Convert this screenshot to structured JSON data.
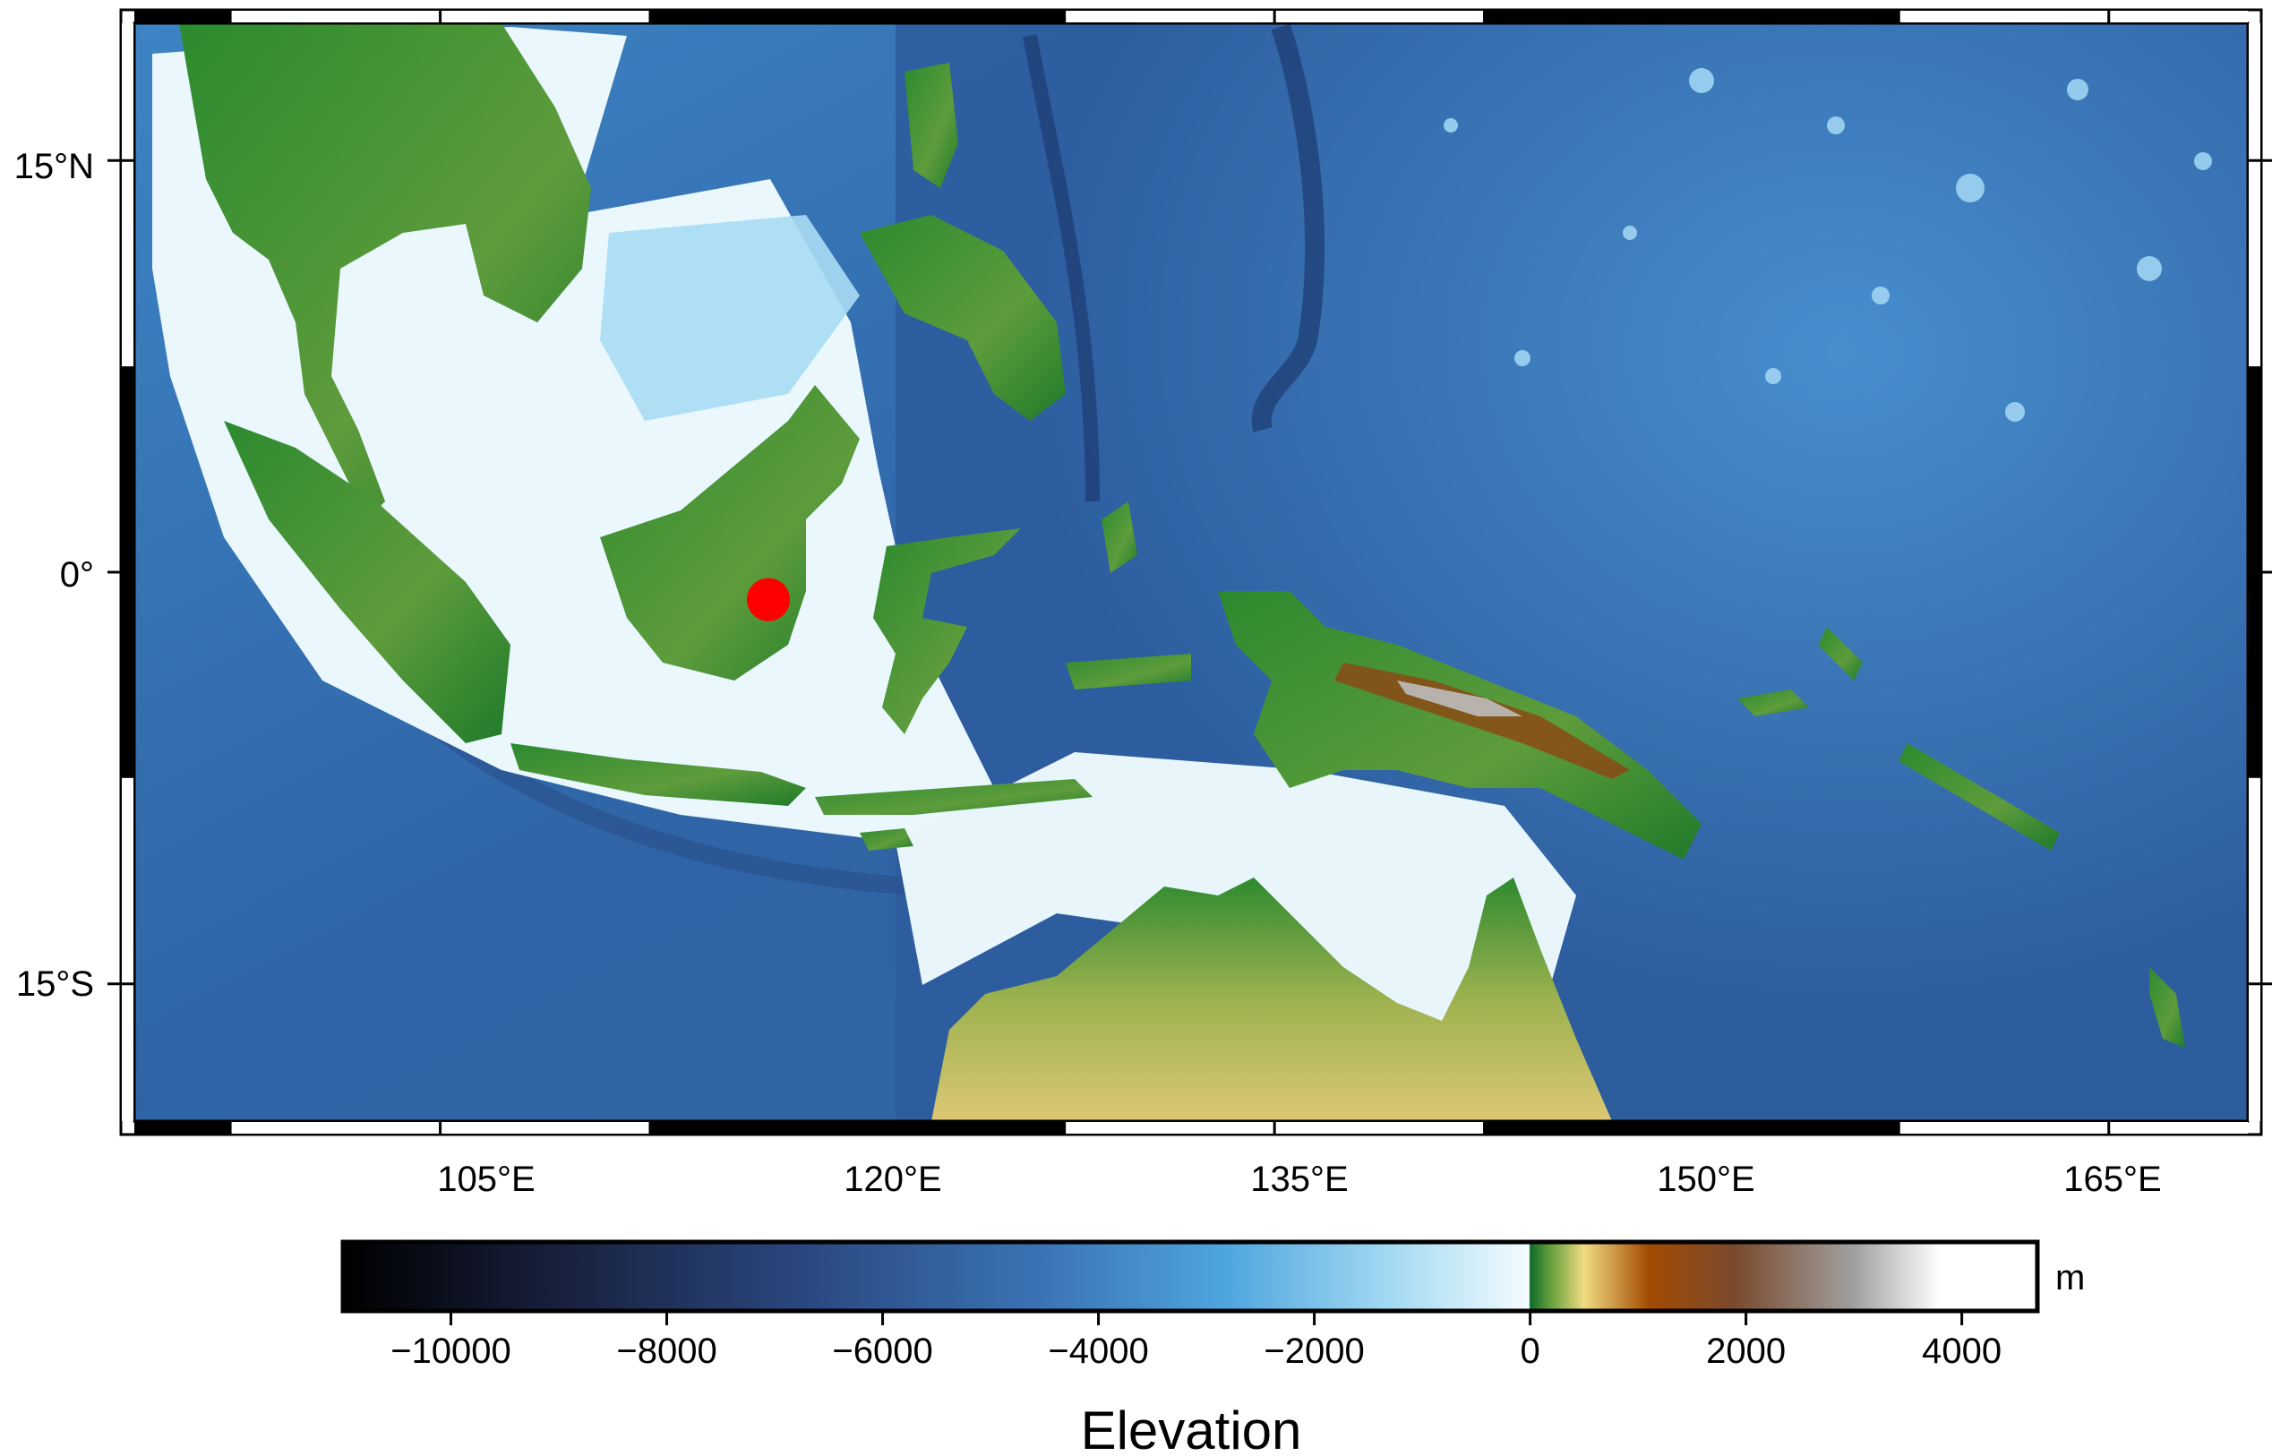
{
  "map": {
    "region": {
      "lon_min": 94,
      "lon_max": 170,
      "lat_min": -20,
      "lat_max": 20
    },
    "projection": "cylindrical",
    "frame_style": "fancy (alternating black/white)",
    "lat_ticks": [
      {
        "value": 15,
        "label": "15°N"
      },
      {
        "value": 0,
        "label": "0°"
      },
      {
        "value": -15,
        "label": "15°S"
      }
    ],
    "lon_ticks": [
      {
        "value": 105,
        "label": "105°E"
      },
      {
        "value": 120,
        "label": "120°E"
      },
      {
        "value": 135,
        "label": "135°E"
      },
      {
        "value": 150,
        "label": "150°E"
      },
      {
        "value": 165,
        "label": "165°E"
      }
    ],
    "colors": {
      "ocean_deep": "#0b0f24",
      "ocean_mid": "#2f5596",
      "ocean_shallow": "#5fb5e8",
      "shelf": "#eaf7fd",
      "lowland": "#1f7a2a",
      "upland": "#e6d27a",
      "mountain": "#8b4a14",
      "peak": "#bdbdbd"
    },
    "marker": {
      "lon": 116.8,
      "lat": -1.0,
      "color": "#ff0000",
      "shape": "circle"
    }
  },
  "colorbar": {
    "title": "Elevation",
    "unit": "m",
    "range": [
      -11000,
      4700
    ],
    "ticks": [
      {
        "value": -10000,
        "label": "−10000"
      },
      {
        "value": -8000,
        "label": "−8000"
      },
      {
        "value": -6000,
        "label": "−6000"
      },
      {
        "value": -4000,
        "label": "−4000"
      },
      {
        "value": -2000,
        "label": "−2000"
      },
      {
        "value": 0,
        "label": "0"
      },
      {
        "value": 2000,
        "label": "2000"
      },
      {
        "value": 4000,
        "label": "4000"
      }
    ],
    "stops": [
      {
        "value": -11000,
        "color": "#000000"
      },
      {
        "value": -9000,
        "color": "#18203d"
      },
      {
        "value": -6500,
        "color": "#2c4c86"
      },
      {
        "value": -4500,
        "color": "#3b74b6"
      },
      {
        "value": -2800,
        "color": "#4fa6de"
      },
      {
        "value": -1200,
        "color": "#a9dcf3"
      },
      {
        "value": -10,
        "color": "#f4fcff"
      },
      {
        "value": 0,
        "color": "#0f6b2a"
      },
      {
        "value": 200,
        "color": "#6aa23e"
      },
      {
        "value": 500,
        "color": "#f0dc82"
      },
      {
        "value": 1100,
        "color": "#a34a02"
      },
      {
        "value": 1900,
        "color": "#7a4a2e"
      },
      {
        "value": 3000,
        "color": "#a0a0a0"
      },
      {
        "value": 3800,
        "color": "#ffffff"
      },
      {
        "value": 4700,
        "color": "#ffffff"
      }
    ]
  }
}
